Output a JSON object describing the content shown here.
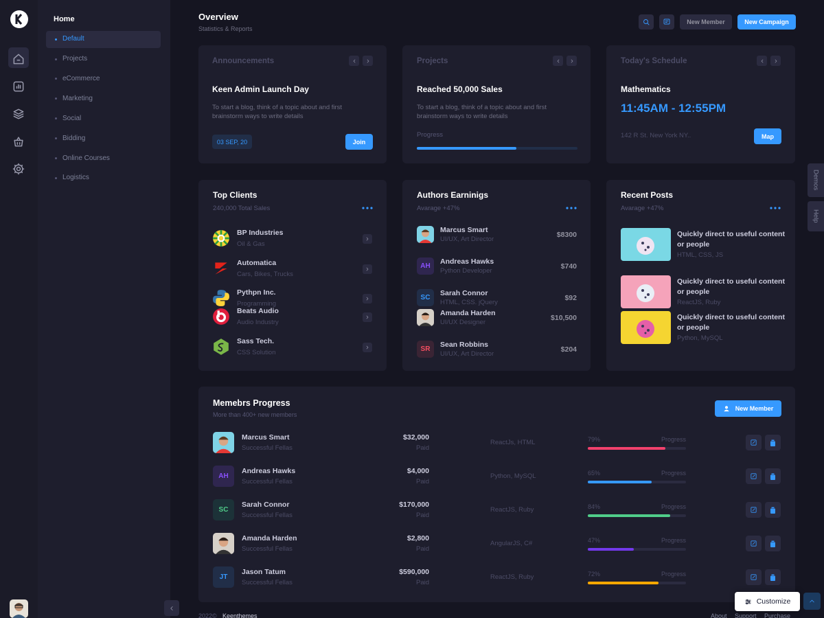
{
  "sidebar": {
    "section": "Home",
    "menu": [
      "Default",
      "Projects",
      "eCommerce",
      "Marketing",
      "Social",
      "Bidding",
      "Online Courses",
      "Logistics"
    ]
  },
  "header": {
    "title": "Overview",
    "subtitle": "Statistics & Reports",
    "new_member": "New Member",
    "new_campaign": "New Campaign"
  },
  "announcements": {
    "label": "Announcements",
    "title": "Keen Admin Launch Day",
    "text": "To start a blog, think of a topic about and first brainstorm ways to write details",
    "date": "03 SEP, 20",
    "button": "Join"
  },
  "projects": {
    "label": "Projects",
    "title": "Reached 50,000 Sales",
    "text": "To start a blog, think of a topic about and first brainstorm ways to write details",
    "progress_label": "Progress",
    "progress": 62
  },
  "schedule": {
    "label": "Today's Schedule",
    "title": "Mathematics",
    "time": "11:45AM - 12:55PM",
    "address": "142 R St. New York NY..",
    "button": "Map"
  },
  "top_clients": {
    "title": "Top Clients",
    "subtitle": "240,000 Total Sales",
    "items": [
      {
        "name": "BP Industries",
        "desc": "Oil & Gas"
      },
      {
        "name": "Automatica",
        "desc": "Cars, Bikes, Trucks"
      },
      {
        "name": "Pythpn Inc.",
        "desc": "Programming"
      },
      {
        "name": "Beats Audio",
        "desc": "Audio Industry"
      },
      {
        "name": "Sass Tech.",
        "desc": "CSS Solution"
      }
    ]
  },
  "authors": {
    "title": "Authors Earninigs",
    "subtitle": "Avarage +47%",
    "items": [
      {
        "name": "Marcus Smart",
        "role": "UI/UX, Art Director",
        "amount": "$8300"
      },
      {
        "name": "Andreas Hawks",
        "initials": "AH",
        "role": "Python Developer",
        "amount": "$740"
      },
      {
        "name": "Sarah Connor",
        "initials": "SC",
        "role": "HTML, CSS. jQuery",
        "amount": "$92"
      },
      {
        "name": "Amanda Harden",
        "role": "UI/UX Designer",
        "amount": "$10,500"
      },
      {
        "name": "Sean Robbins",
        "initials": "SR",
        "role": "UI/UX, Art Director",
        "amount": "$204"
      }
    ]
  },
  "recent_posts": {
    "title": "Recent Posts",
    "subtitle": "Avarage +47%",
    "items": [
      {
        "title": "Quickly direct to useful content or people",
        "tags": "HTML, CSS, JS"
      },
      {
        "title": "Quickly direct to useful content or people",
        "tags": "ReactJS, Ruby"
      },
      {
        "title": "Quickly direct to useful content or people",
        "tags": "Python, MySQL"
      }
    ]
  },
  "members": {
    "title": "Memebrs Progress",
    "subtitle": "More than 400+ new members",
    "button": "New Member",
    "rows": [
      {
        "name": "Marcus Smart",
        "role": "Successful Fellas",
        "amount": "$32,000",
        "amount_note": "Paid",
        "skills": "ReactJs, HTML",
        "progress": {
          "value": 79,
          "label": "79%"
        },
        "progress_label": "Progress",
        "color": "#f1416c"
      },
      {
        "name": "Andreas Hawks",
        "initials": "AH",
        "role": "Successful Fellas",
        "amount": "$4,000",
        "amount_note": "Paid",
        "skills": "Python, MySQL",
        "progress": {
          "value": 65,
          "label": "65%"
        },
        "progress_label": "Progress",
        "color": "#3699ff"
      },
      {
        "name": "Sarah Connor",
        "initials": "SC",
        "role": "Successful Fellas",
        "amount": "$170,000",
        "amount_note": "Paid",
        "skills": "ReactJS, Ruby",
        "progress": {
          "value": 84,
          "label": "84%"
        },
        "progress_label": "Progress",
        "color": "#50cd89"
      },
      {
        "name": "Amanda Harden",
        "role": "Successful Fellas",
        "amount": "$2,800",
        "amount_note": "Paid",
        "skills": "AngularJS, C#",
        "progress": {
          "value": 47,
          "label": "47%"
        },
        "progress_label": "Progress",
        "color": "#7239ea"
      },
      {
        "name": "Jason Tatum",
        "initials": "JT",
        "role": "Successful Fellas",
        "amount": "$590,000",
        "amount_note": "Paid",
        "skills": "ReactJS, Ruby",
        "progress": {
          "value": 72,
          "label": "72%"
        },
        "progress_label": "Progress",
        "color": "#ffa800"
      }
    ]
  },
  "side_tabs": [
    "Demos",
    "Help"
  ],
  "customize": "Customize",
  "footer": {
    "year": "2022©",
    "brand": "Keenthemes",
    "links": [
      "About",
      "Support",
      "Purchase"
    ]
  }
}
